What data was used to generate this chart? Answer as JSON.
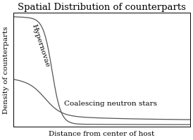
{
  "title": "Spatial Distribution of counterparts",
  "xlabel": "Distance from center of host",
  "ylabel": "Density of counterparts",
  "curve1_label": "Hypernovae",
  "curve2_label": "Coalescing neutron stars",
  "background_color": "#ffffff",
  "curve_color": "#555555",
  "title_fontsize": 9.5,
  "label_fontsize": 7.5,
  "annotation_fontsize": 7.5,
  "figsize": [
    2.74,
    1.99
  ],
  "dpi": 100
}
